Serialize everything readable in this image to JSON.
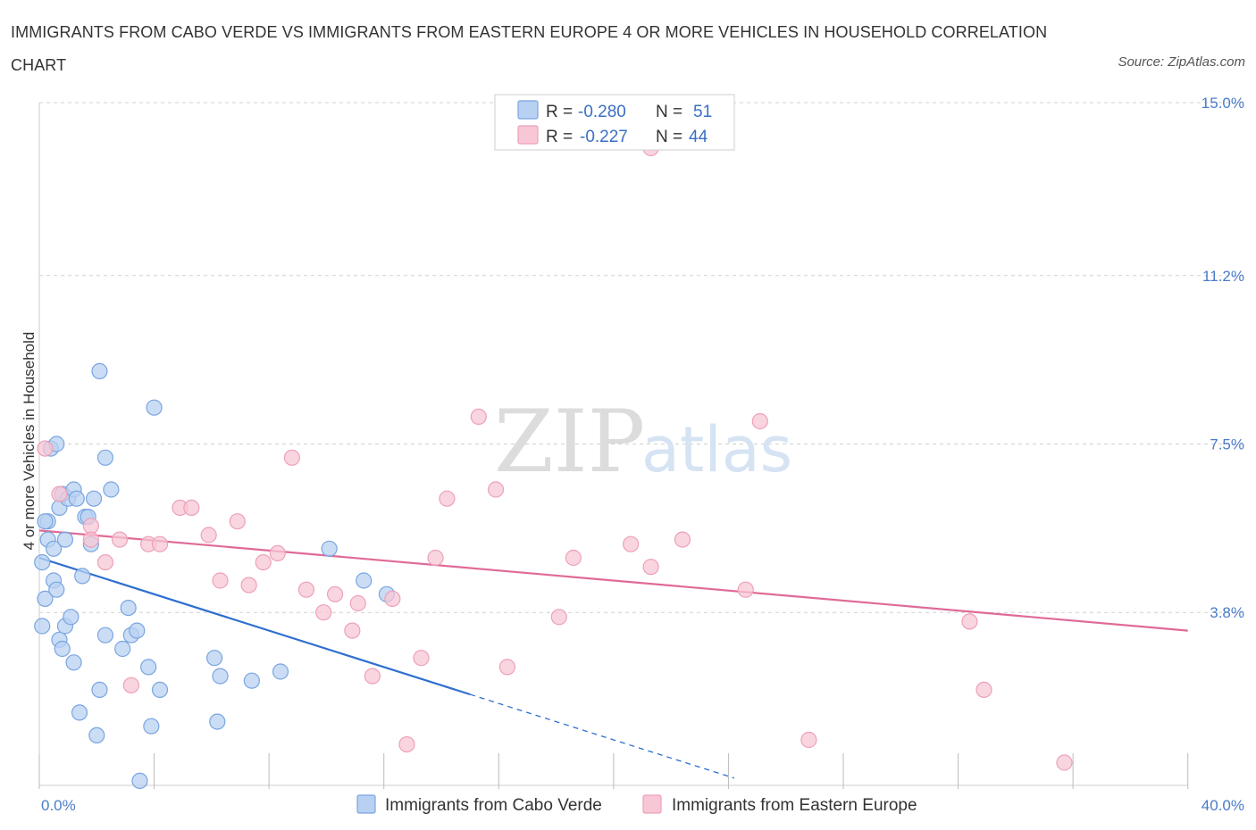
{
  "title": "IMMIGRANTS FROM CABO VERDE VS IMMIGRANTS FROM EASTERN EUROPE 4 OR MORE VEHICLES IN HOUSEHOLD CORRELATION CHART",
  "source": "Source: ZipAtlas.com",
  "watermark": {
    "zip": "ZIP",
    "atlas": "atlas"
  },
  "colors": {
    "blue_fill": "#b8d1f2",
    "blue_stroke": "#7aa5e0",
    "blue_line": "#2f6fd0",
    "pink_fill": "#f7c7d6",
    "pink_stroke": "#eea0b8",
    "pink_line": "#e06a97",
    "grid": "#d0d0d0",
    "axis_label": "#4a7cc9"
  },
  "legend": {
    "rows": [
      {
        "r_label": "R =",
        "r_value": "-0.280",
        "n_label": "N =",
        "n_value": "51"
      },
      {
        "r_label": "R =",
        "r_value": "-0.227",
        "n_label": "N =",
        "n_value": "44"
      }
    ]
  },
  "chart_data": {
    "type": "scatter",
    "title": "IMMIGRANTS FROM CABO VERDE VS IMMIGRANTS FROM EASTERN EUROPE 4 OR MORE VEHICLES IN HOUSEHOLD CORRELATION CHART",
    "xlabel": "",
    "ylabel": "4 or more Vehicles in Household",
    "xlim": [
      0,
      42
    ],
    "ylim": [
      0,
      15
    ],
    "x_tick_labels": [
      "0.0%",
      "40.0%"
    ],
    "y_ticks": [
      3.8,
      7.5,
      11.2,
      15.0
    ],
    "y_tick_labels": [
      "3.8%",
      "7.5%",
      "11.2%",
      "15.0%"
    ],
    "grid": true,
    "series": [
      {
        "name": "Immigrants from Cabo Verde",
        "color": "blue",
        "points": [
          [
            0.1,
            4.9
          ],
          [
            0.1,
            3.5
          ],
          [
            0.2,
            4.1
          ],
          [
            0.3,
            5.8
          ],
          [
            0.3,
            5.4
          ],
          [
            0.4,
            7.4
          ],
          [
            0.5,
            4.5
          ],
          [
            0.5,
            5.2
          ],
          [
            0.6,
            4.3
          ],
          [
            0.6,
            7.5
          ],
          [
            0.7,
            3.2
          ],
          [
            0.7,
            6.1
          ],
          [
            0.8,
            6.4
          ],
          [
            0.8,
            3.0
          ],
          [
            0.9,
            5.4
          ],
          [
            0.9,
            3.5
          ],
          [
            1.0,
            6.3
          ],
          [
            1.1,
            3.7
          ],
          [
            1.2,
            6.5
          ],
          [
            1.2,
            2.7
          ],
          [
            1.3,
            6.3
          ],
          [
            1.4,
            1.6
          ],
          [
            1.5,
            4.6
          ],
          [
            1.6,
            5.9
          ],
          [
            1.7,
            5.9
          ],
          [
            1.8,
            5.3
          ],
          [
            1.9,
            6.3
          ],
          [
            2.0,
            1.1
          ],
          [
            2.1,
            2.1
          ],
          [
            2.1,
            9.1
          ],
          [
            2.3,
            7.2
          ],
          [
            2.3,
            3.3
          ],
          [
            2.5,
            6.5
          ],
          [
            2.9,
            3.0
          ],
          [
            3.1,
            3.9
          ],
          [
            3.2,
            3.3
          ],
          [
            3.4,
            3.4
          ],
          [
            3.5,
            0.1
          ],
          [
            3.8,
            2.6
          ],
          [
            3.9,
            1.3
          ],
          [
            4.0,
            8.3
          ],
          [
            4.2,
            2.1
          ],
          [
            6.1,
            2.8
          ],
          [
            6.2,
            1.4
          ],
          [
            6.3,
            2.4
          ],
          [
            7.4,
            2.3
          ],
          [
            8.4,
            2.5
          ],
          [
            10.1,
            5.2
          ],
          [
            11.3,
            4.5
          ],
          [
            12.1,
            4.2
          ],
          [
            0.2,
            5.8
          ]
        ]
      },
      {
        "name": "Immigrants from Eastern Europe",
        "color": "pink",
        "points": [
          [
            0.2,
            7.4
          ],
          [
            0.7,
            6.4
          ],
          [
            1.8,
            5.7
          ],
          [
            1.8,
            5.4
          ],
          [
            2.3,
            4.9
          ],
          [
            2.8,
            5.4
          ],
          [
            3.2,
            2.2
          ],
          [
            3.8,
            5.3
          ],
          [
            4.2,
            5.3
          ],
          [
            4.9,
            6.1
          ],
          [
            5.3,
            6.1
          ],
          [
            5.9,
            5.5
          ],
          [
            6.3,
            4.5
          ],
          [
            6.9,
            5.8
          ],
          [
            7.3,
            4.4
          ],
          [
            7.8,
            4.9
          ],
          [
            8.3,
            5.1
          ],
          [
            8.8,
            7.2
          ],
          [
            9.3,
            4.3
          ],
          [
            9.9,
            3.8
          ],
          [
            10.3,
            4.2
          ],
          [
            10.9,
            3.4
          ],
          [
            11.1,
            4.0
          ],
          [
            11.6,
            2.4
          ],
          [
            12.3,
            4.1
          ],
          [
            12.8,
            0.9
          ],
          [
            13.3,
            2.8
          ],
          [
            13.8,
            5.0
          ],
          [
            14.2,
            6.3
          ],
          [
            15.3,
            8.1
          ],
          [
            15.9,
            6.5
          ],
          [
            16.3,
            2.6
          ],
          [
            18.1,
            3.7
          ],
          [
            18.6,
            5.0
          ],
          [
            20.6,
            5.3
          ],
          [
            21.3,
            4.8
          ],
          [
            21.3,
            14.0
          ],
          [
            22.4,
            5.4
          ],
          [
            24.6,
            4.3
          ],
          [
            25.1,
            8.0
          ],
          [
            26.8,
            1.0
          ],
          [
            32.4,
            3.6
          ],
          [
            32.9,
            2.1
          ],
          [
            35.7,
            0.5
          ]
        ]
      }
    ],
    "trendlines": [
      {
        "series": "Immigrants from Cabo Verde",
        "x0": 0,
        "y0": 5.0,
        "x1": 15,
        "y1": 2.0,
        "dash_to_x": 24.2
      },
      {
        "series": "Immigrants from Eastern Europe",
        "x0": 0,
        "y0": 5.6,
        "x1": 40,
        "y1": 3.4
      }
    ]
  }
}
